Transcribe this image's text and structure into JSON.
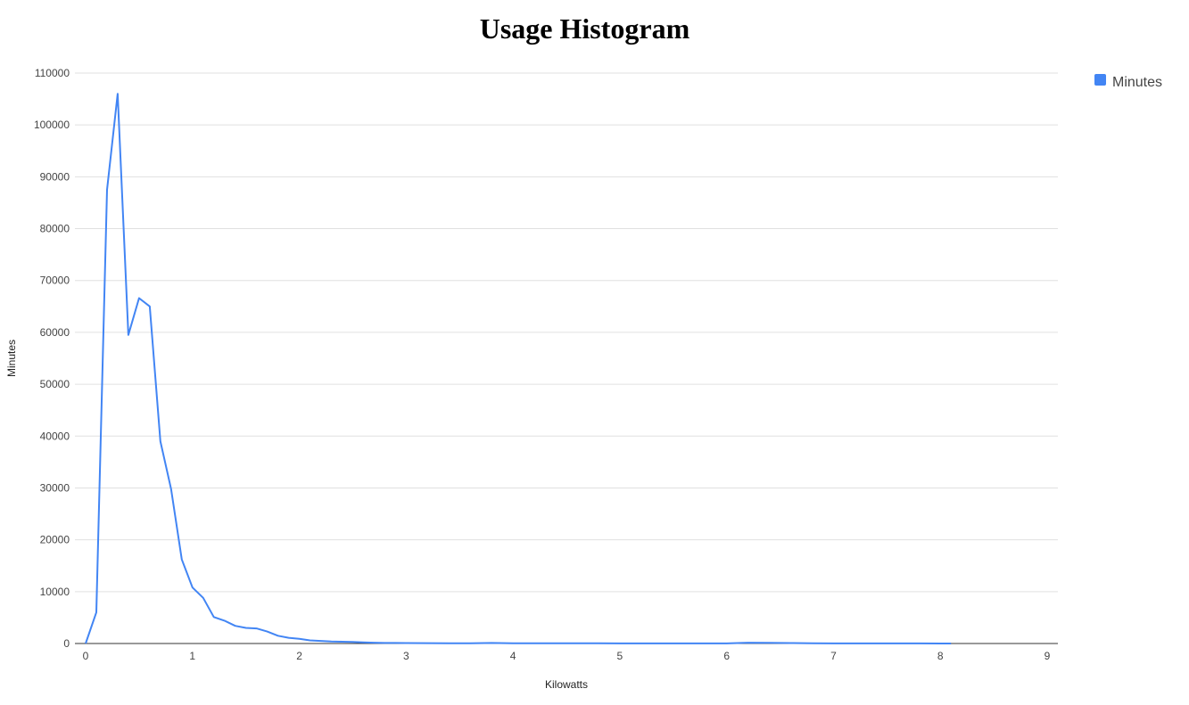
{
  "chart_data": {
    "type": "line",
    "title": "Usage Histogram",
    "xlabel": "Kilowatts",
    "ylabel": "Minutes",
    "xlim": [
      0,
      9
    ],
    "ylim": [
      0,
      110000
    ],
    "x_ticks": [
      "0",
      "1",
      "2",
      "3",
      "4",
      "5",
      "6",
      "7",
      "8",
      "9"
    ],
    "y_ticks": [
      "0",
      "10000",
      "20000",
      "30000",
      "40000",
      "50000",
      "60000",
      "70000",
      "80000",
      "90000",
      "100000",
      "110000"
    ],
    "grid": true,
    "legend_position": "top-right",
    "series": [
      {
        "name": "Minutes",
        "color": "#4285f4",
        "x": [
          0,
          0.1,
          0.2,
          0.3,
          0.4,
          0.5,
          0.6,
          0.7,
          0.8,
          0.9,
          1.0,
          1.1,
          1.2,
          1.3,
          1.4,
          1.5,
          1.6,
          1.7,
          1.8,
          1.9,
          2.0,
          2.1,
          2.2,
          2.3,
          2.4,
          2.5,
          2.6,
          2.7,
          2.8,
          2.9,
          3.0,
          3.2,
          3.4,
          3.6,
          3.8,
          4.0,
          4.2,
          4.4,
          4.6,
          4.8,
          5.0,
          5.2,
          5.4,
          5.6,
          5.8,
          6.0,
          6.2,
          6.4,
          6.6,
          6.8,
          7.0,
          7.2,
          7.4,
          7.6,
          7.8,
          8.0,
          8.1
        ],
        "values": [
          0,
          6000,
          87500,
          106000,
          59500,
          66600,
          65000,
          39000,
          29800,
          16200,
          10800,
          8800,
          5100,
          4400,
          3400,
          3000,
          2900,
          2300,
          1500,
          1100,
          900,
          600,
          500,
          400,
          350,
          300,
          200,
          150,
          100,
          100,
          80,
          70,
          50,
          60,
          100,
          60,
          40,
          40,
          30,
          30,
          20,
          20,
          15,
          15,
          10,
          10,
          150,
          120,
          80,
          40,
          20,
          15,
          10,
          10,
          10,
          5,
          5
        ]
      }
    ]
  }
}
